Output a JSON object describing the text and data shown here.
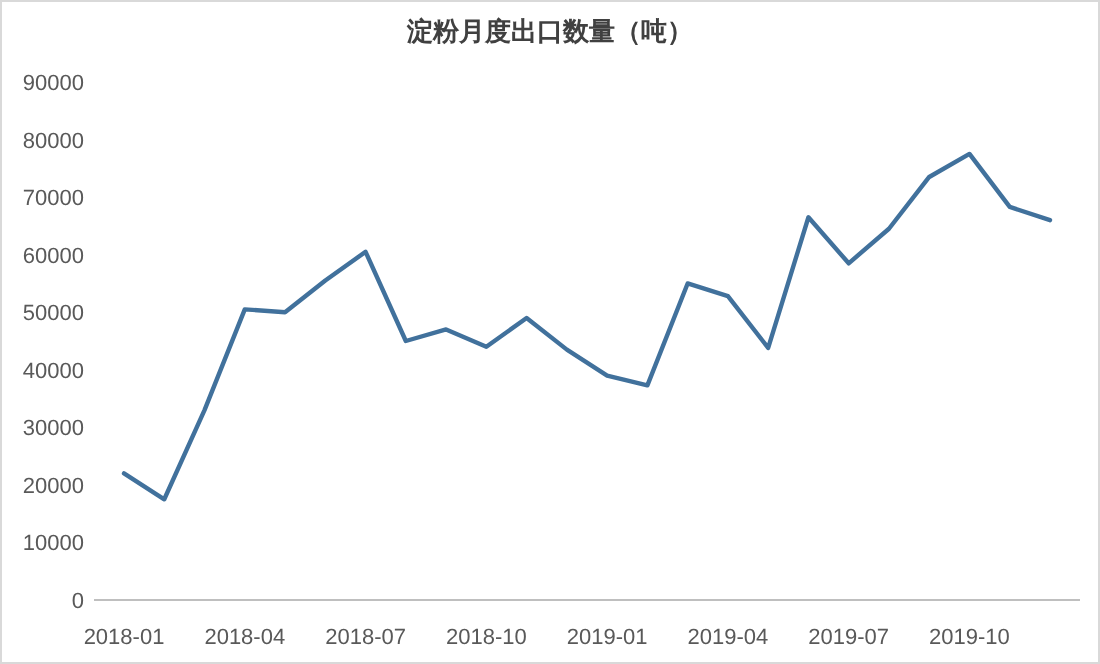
{
  "chart_data": {
    "type": "line",
    "title": "淀粉月度出口数量（吨）",
    "categories": [
      "2018-01",
      null,
      null,
      "2018-04",
      null,
      null,
      "2018-07",
      null,
      null,
      "2018-10",
      null,
      null,
      "2019-01",
      null,
      null,
      "2019-04",
      null,
      null,
      "2019-07",
      null,
      null,
      "2019-10",
      null,
      null
    ],
    "series": [
      {
        "color": "#41719c",
        "values": [
          22000,
          17500,
          33000,
          50500,
          50000,
          55500,
          60500,
          45000,
          47000,
          44000,
          49000,
          43500,
          39000,
          37300,
          55000,
          52800,
          43800,
          66500,
          58500,
          64500,
          73500,
          77500,
          68300,
          66000
        ]
      }
    ],
    "ylim": [
      0,
      90000
    ],
    "yticks": [
      0,
      10000,
      20000,
      30000,
      40000,
      50000,
      60000,
      70000,
      80000,
      90000
    ],
    "grid": false,
    "marker": "none",
    "line_style": "solid"
  }
}
